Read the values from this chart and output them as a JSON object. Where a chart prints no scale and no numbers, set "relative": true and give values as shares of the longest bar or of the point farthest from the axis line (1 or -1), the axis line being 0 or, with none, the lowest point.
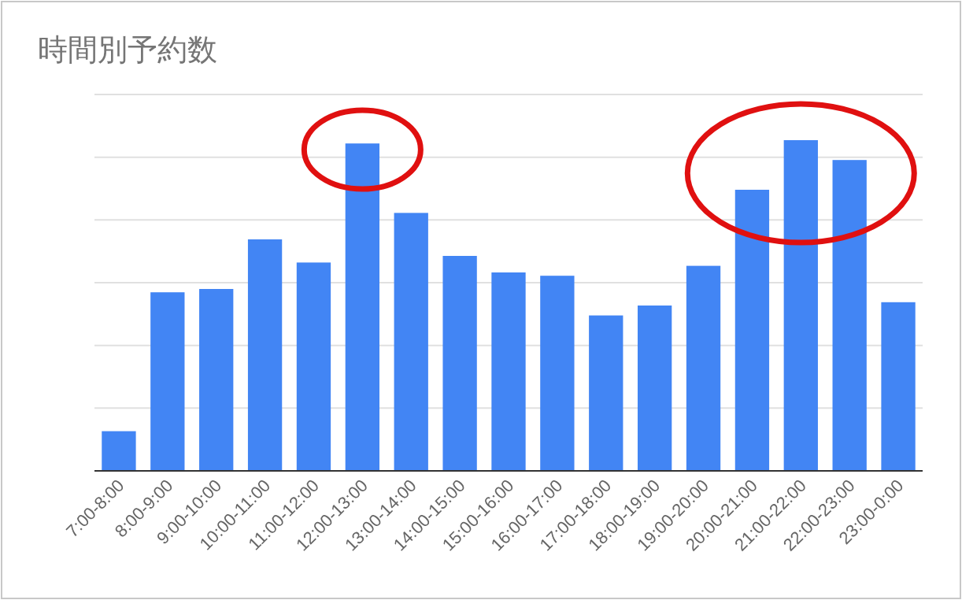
{
  "chart_data": {
    "type": "bar",
    "title": "時間別予約数",
    "relative": true,
    "grid": "y",
    "color": "#4285f4",
    "categories": [
      "7:00-8:00",
      "8:00-9:00",
      "9:00-10:00",
      "10:00-11:00",
      "11:00-12:00",
      "12:00-13:00",
      "13:00-14:00",
      "14:00-15:00",
      "15:00-16:00",
      "16:00-17:00",
      "17:00-18:00",
      "18:00-19:00",
      "19:00-20:00",
      "20:00-21:00",
      "21:00-22:00",
      "22:00-23:00",
      "23:00-0:00"
    ],
    "values": [
      0.12,
      0.54,
      0.55,
      0.7,
      0.63,
      0.99,
      0.78,
      0.65,
      0.6,
      0.59,
      0.47,
      0.5,
      0.62,
      0.85,
      1,
      0.94,
      0.51
    ]
  }
}
